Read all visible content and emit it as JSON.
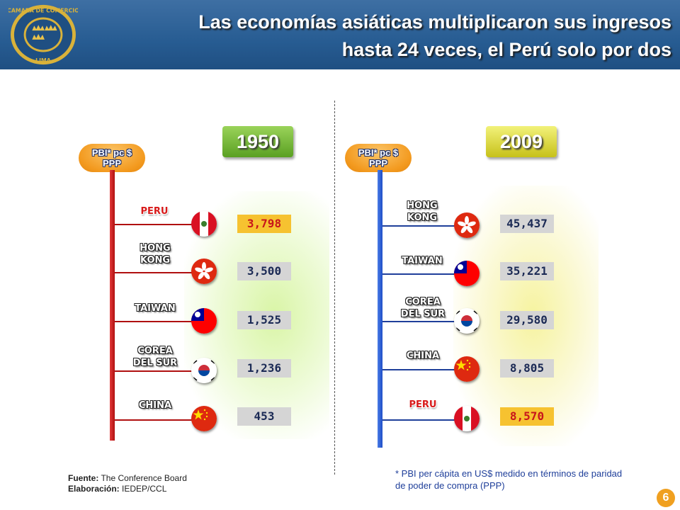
{
  "title": {
    "line1": "Las economías asiáticas multiplicaron sus ingresos",
    "line2": "hasta 24 veces, el Perú solo por dos"
  },
  "logo": {
    "text": "CAMARA DE COMERCIO · LIMA ·",
    "icon": "crowns-seal-icon"
  },
  "axis_label": {
    "line1": "PBI* pc $",
    "line2": "PPP"
  },
  "panels": [
    {
      "year": "1950",
      "rows": [
        {
          "country": "PERU",
          "country_l2": "",
          "value": "3,798",
          "flag": "peru",
          "highlight": true
        },
        {
          "country": "HONG",
          "country_l2": "KONG",
          "value": "3,500",
          "flag": "hong-kong",
          "highlight": false
        },
        {
          "country": "TAIWAN",
          "country_l2": "",
          "value": "1,525",
          "flag": "taiwan",
          "highlight": false
        },
        {
          "country": "COREA",
          "country_l2": "DEL SUR",
          "value": "1,236",
          "flag": "south-korea",
          "highlight": false
        },
        {
          "country": "CHINA",
          "country_l2": "",
          "value": "453",
          "flag": "china",
          "highlight": false
        }
      ]
    },
    {
      "year": "2009",
      "rows": [
        {
          "country": "HONG",
          "country_l2": "KONG",
          "value": "45,437",
          "flag": "hong-kong",
          "highlight": false
        },
        {
          "country": "TAIWAN",
          "country_l2": "",
          "value": "35,221",
          "flag": "taiwan",
          "highlight": false
        },
        {
          "country": "COREA",
          "country_l2": "DEL SUR",
          "value": "29,580",
          "flag": "south-korea",
          "highlight": false
        },
        {
          "country": "CHINA",
          "country_l2": "",
          "value": "8,805",
          "flag": "china",
          "highlight": false
        },
        {
          "country": "PERU",
          "country_l2": "",
          "value": "8,570",
          "flag": "peru",
          "highlight": true
        }
      ]
    }
  ],
  "source": {
    "fuente_label": "Fuente:",
    "fuente_value": "The Conference Board",
    "elaboracion_label": "Elaboración:",
    "elaboracion_value": "IEDEP/CCL"
  },
  "footnote": "* PBI per cápita en US$ medido en términos de paridad de poder de compra (PPP)",
  "page_number": "6",
  "colors": {
    "header_blue": "#275c92",
    "axis_1950": "#c8151b",
    "axis_2009": "#2a5bd7",
    "pill_orange": "#f39a1f",
    "year_1950_green": "#5aa022",
    "year_2009_yellow": "#c7c11a",
    "highlight_box": "#f6c230"
  }
}
